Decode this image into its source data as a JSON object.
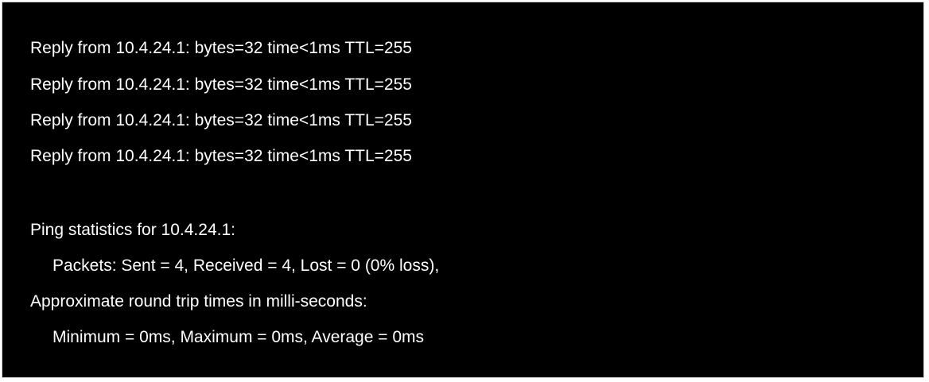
{
  "terminal": {
    "replies": [
      "Reply from 10.4.24.1: bytes=32 time<1ms TTL=255",
      "Reply from 10.4.24.1: bytes=32 time<1ms TTL=255",
      "Reply from 10.4.24.1: bytes=32 time<1ms TTL=255",
      "Reply from 10.4.24.1: bytes=32 time<1ms TTL=255"
    ],
    "stats_header": "Ping statistics for 10.4.24.1:",
    "packets_line": "Packets: Sent = 4, Received = 4, Lost = 0 (0% loss),",
    "rtt_header": "Approximate round trip times in milli-seconds:",
    "rtt_line": "Minimum = 0ms, Maximum = 0ms, Average = 0ms"
  },
  "colors": {
    "background": "#000000",
    "text": "#ffffff"
  }
}
